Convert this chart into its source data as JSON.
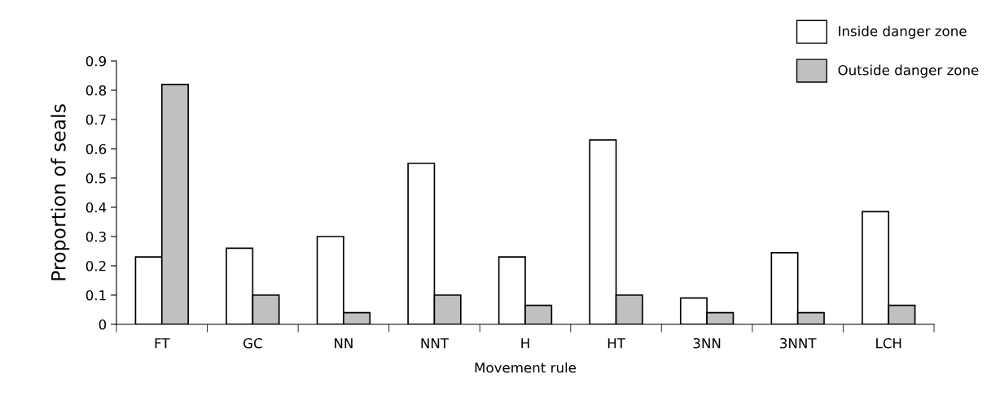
{
  "chart_data": {
    "type": "bar",
    "xlabel": "Movement rule",
    "ylabel": "Proportion of seals",
    "categories": [
      "FT",
      "GC",
      "NN",
      "NNT",
      "H",
      "HT",
      "3NN",
      "3NNT",
      "LCH"
    ],
    "series": [
      {
        "name": "Inside danger zone",
        "color": "#ffffff",
        "values": [
          0.23,
          0.26,
          0.3,
          0.55,
          0.23,
          0.63,
          0.09,
          0.245,
          0.385
        ]
      },
      {
        "name": "Outside danger zone",
        "color": "#c0c0c0",
        "values": [
          0.82,
          0.1,
          0.04,
          0.1,
          0.065,
          0.1,
          0.04,
          0.04,
          0.065
        ]
      }
    ],
    "ylim": [
      0,
      0.9
    ],
    "yticks": [
      {
        "value": 0,
        "label": "0"
      },
      0.1,
      0.2,
      0.3,
      0.4,
      0.5,
      0.6,
      0.7,
      0.8,
      0.9
    ],
    "grid": false,
    "legend": "top right"
  }
}
